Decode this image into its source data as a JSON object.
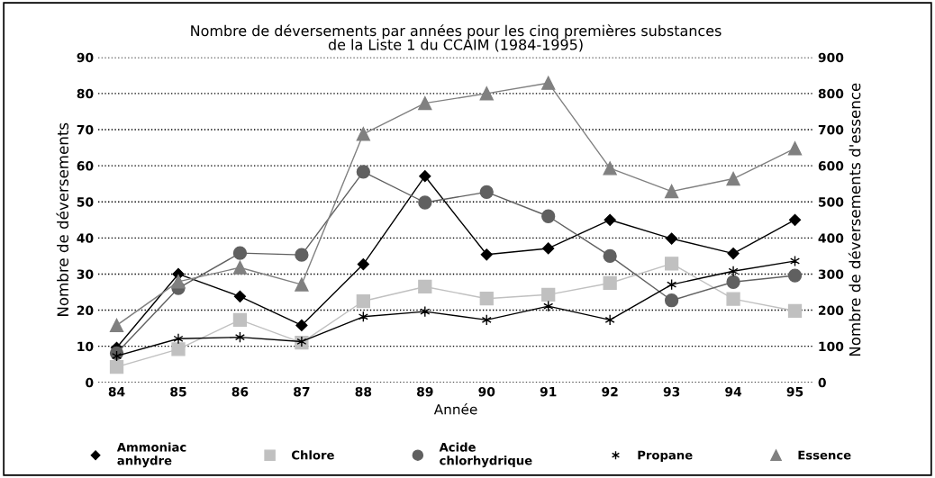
{
  "chart_data": {
    "type": "line",
    "title": "Nombre de déversements par années pour les cinq premières substances\nde la Liste 1 du CCAIM (1984-1995)",
    "xlabel": "Année",
    "ylabel": "Nombre de déversements",
    "y2label": "Nombre de déversements d'essence",
    "categories": [
      "84",
      "85",
      "86",
      "87",
      "88",
      "89",
      "90",
      "91",
      "92",
      "93",
      "94",
      "95"
    ],
    "series": [
      {
        "name": "Ammoniac\nanhydre",
        "color": "#000000",
        "marker": "diamond",
        "values": [
          9.6,
          30,
          23.8,
          15.8,
          32.7,
          57.1,
          35.4,
          37.1,
          45,
          39.8,
          35.7,
          45
        ]
      },
      {
        "name": "Chlore",
        "color": "#c0c0c0",
        "marker": "square",
        "values": [
          4.3,
          9.2,
          17.3,
          11,
          22.5,
          26.5,
          23.2,
          24.3,
          27.5,
          32.9,
          23.1,
          19.8
        ]
      },
      {
        "name": "Acide\nchlorhydrique",
        "color": "#606060",
        "marker": "circle",
        "values": [
          8.1,
          26.1,
          35.8,
          35.3,
          58.3,
          49.8,
          52.7,
          46,
          35,
          22.7,
          27.8,
          29.6
        ]
      },
      {
        "name": "Propane",
        "color": "#000000",
        "marker": "cross",
        "values": [
          7.3,
          12.1,
          12.5,
          11.3,
          18.2,
          19.6,
          17.3,
          21.1,
          17.3,
          27.1,
          30.8,
          33.6
        ]
      },
      {
        "name": "Essence",
        "color": "#808080",
        "marker": "triangle",
        "axis": "y2",
        "values": [
          158,
          279,
          318,
          271,
          688,
          773,
          800,
          829,
          593,
          529,
          564,
          648
        ]
      }
    ],
    "ylim": [
      0,
      90
    ],
    "yticks": [
      0,
      10,
      20,
      30,
      40,
      50,
      60,
      70,
      80,
      90
    ],
    "y2lim": [
      0,
      900
    ],
    "y2ticks": [
      0,
      100,
      200,
      300,
      400,
      500,
      600,
      700,
      800,
      900
    ],
    "grid": "y",
    "legend": "bottom"
  }
}
